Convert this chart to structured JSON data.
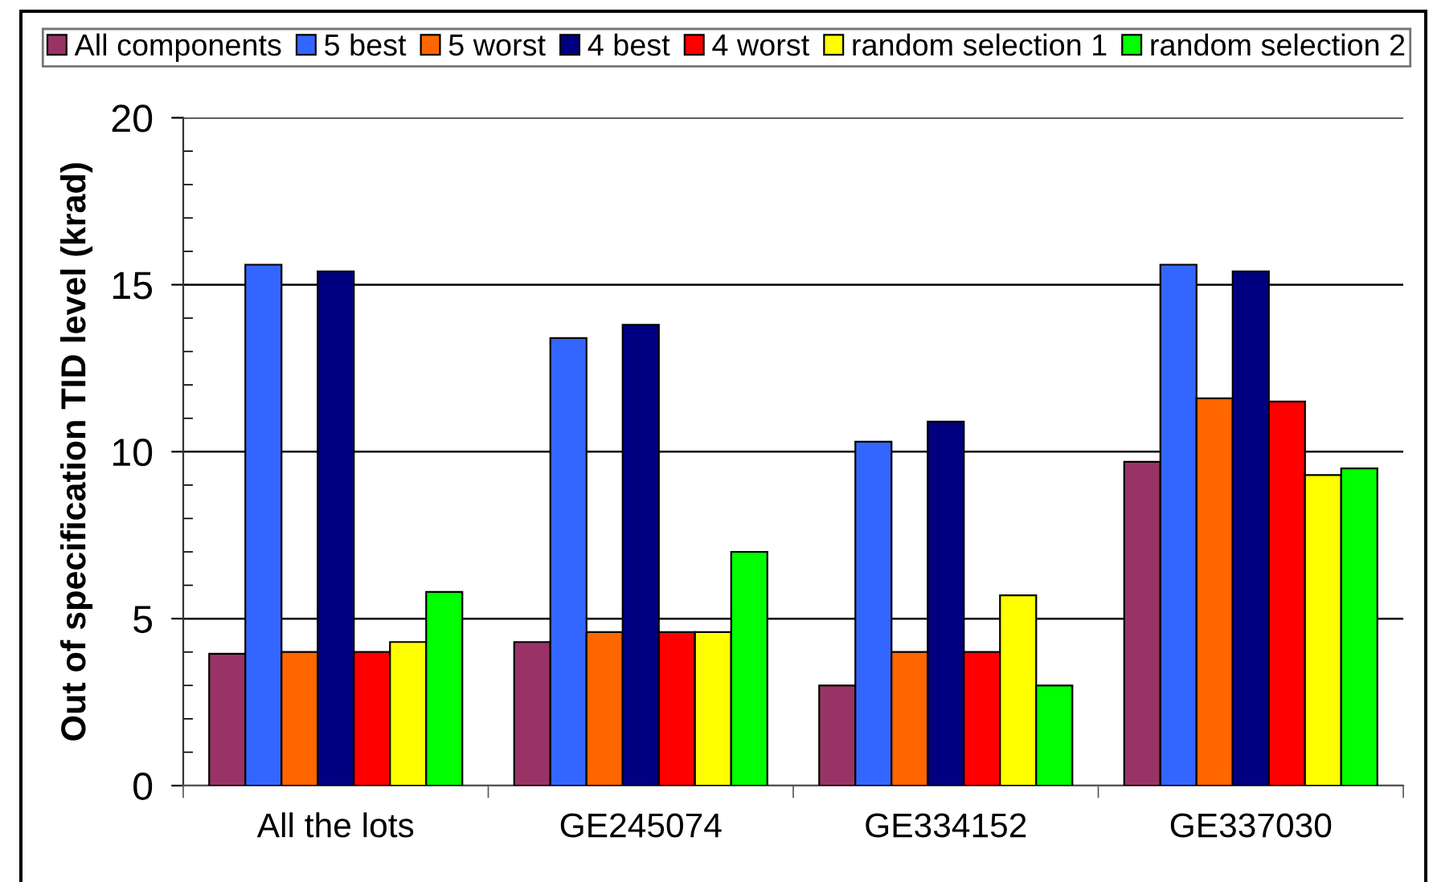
{
  "chart_data": {
    "type": "bar",
    "categories": [
      "All the lots",
      "GE245074",
      "GE334152",
      "GE337030"
    ],
    "ylabel": "Out of specification TID level (krad)",
    "ylim": [
      0,
      20
    ],
    "yticks": [
      0,
      5,
      10,
      15,
      20
    ],
    "grid": "y",
    "legend": "top",
    "series": [
      {
        "name": "All components",
        "color": "#993366",
        "values": [
          3.95,
          4.3,
          3.0,
          9.7
        ]
      },
      {
        "name": "5 best",
        "color": "#3366ff",
        "values": [
          15.6,
          13.4,
          10.3,
          15.6
        ]
      },
      {
        "name": "5 worst",
        "color": "#ff6600",
        "values": [
          4.0,
          4.6,
          4.0,
          11.6
        ]
      },
      {
        "name": "4 best",
        "color": "#000080",
        "values": [
          15.4,
          13.8,
          10.9,
          15.4
        ]
      },
      {
        "name": "4 worst",
        "color": "#ff0000",
        "values": [
          4.0,
          4.6,
          4.0,
          11.5
        ]
      },
      {
        "name": "random selection 1",
        "color": "#ffff00",
        "values": [
          4.3,
          4.6,
          5.7,
          9.3
        ]
      },
      {
        "name": "random selection 2",
        "color": "#00ff00",
        "values": [
          5.8,
          7.0,
          3.0,
          9.5
        ]
      }
    ]
  }
}
